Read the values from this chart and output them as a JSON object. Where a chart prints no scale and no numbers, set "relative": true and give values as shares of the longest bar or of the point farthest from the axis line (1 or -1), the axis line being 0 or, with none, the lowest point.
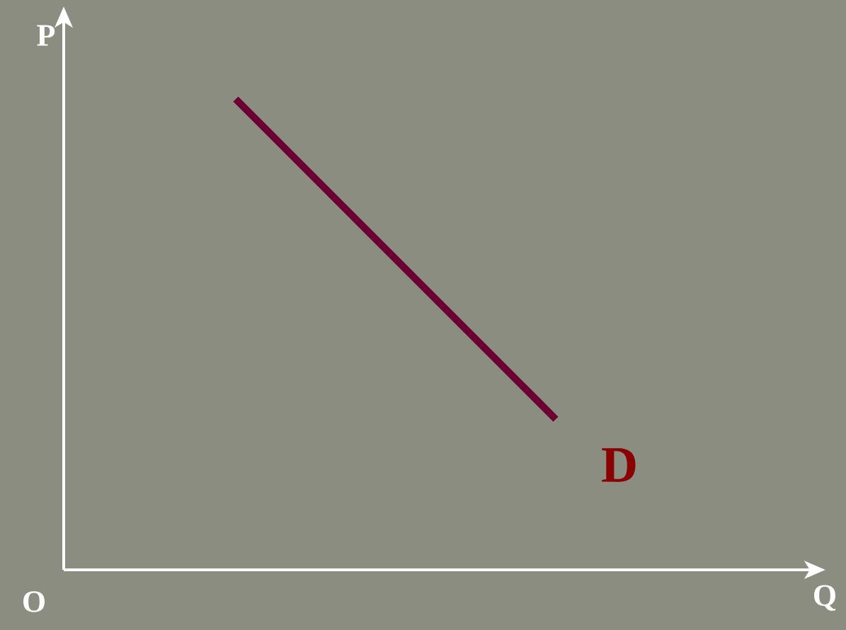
{
  "chart_data": {
    "type": "line",
    "relative": true,
    "xlabel": "Q",
    "ylabel": "P",
    "categories": [
      null,
      null
    ],
    "series": [
      {
        "color": "#6b0033",
        "values": [
          1,
          0.32
        ]
      }
    ],
    "annotations": [
      "O",
      "D"
    ]
  }
}
